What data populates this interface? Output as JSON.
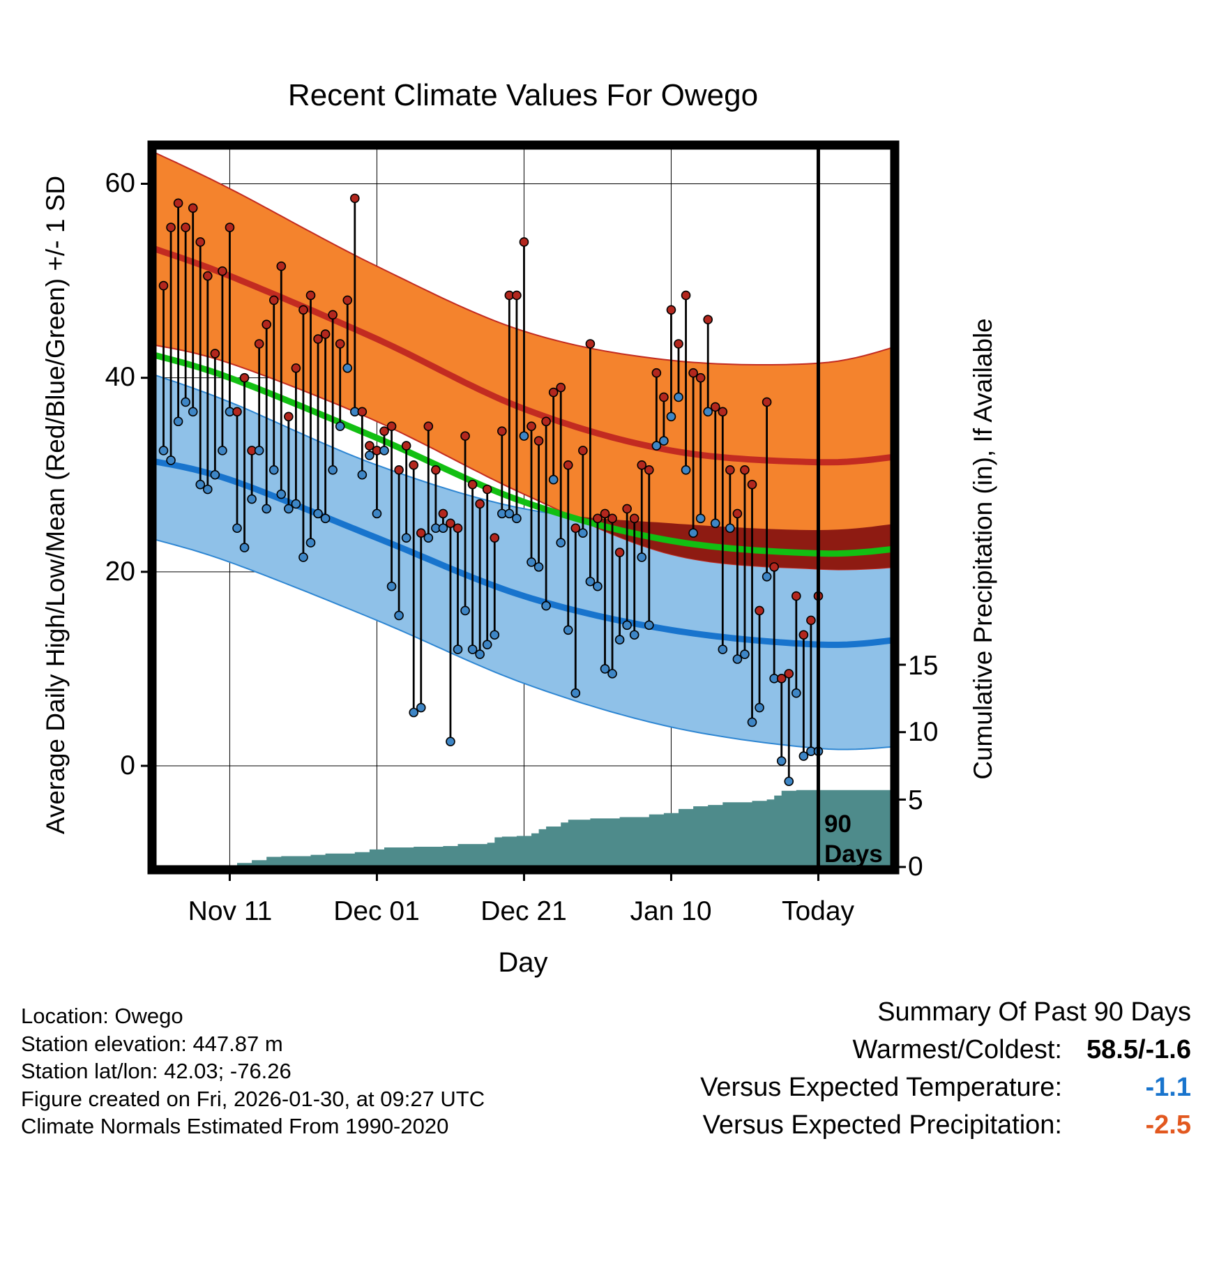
{
  "title": "Recent Climate Values For Owego",
  "axes": {
    "left_label": "Average Daily High/Low/Mean (Red/Blue/Green) +/- 1 SD",
    "right_label": "Cumulative Precipitation (in), If Available",
    "x_label": "Day",
    "left_ticks": [
      "60",
      "40",
      "20",
      "0"
    ],
    "right_ticks": [
      "15",
      "10",
      "5",
      "0"
    ],
    "x_ticks": [
      "Nov 11",
      "Dec 01",
      "Dec 21",
      "Jan 10",
      "Today"
    ]
  },
  "annotations": {
    "marker_line1": "90",
    "marker_line2": "Days"
  },
  "footer": {
    "lines": [
      "Location: Owego",
      "Station elevation: 447.87 m",
      "Station lat/lon: 42.03; -76.26",
      "Figure created on Fri, 2026-01-30, at 09:27 UTC",
      "Climate Normals Estimated From 1990-2020"
    ]
  },
  "summary": {
    "title": "Summary Of Past 90 Days",
    "rows": [
      {
        "label": "Warmest/Coldest:",
        "value": "58.5/-1.6",
        "color": "#000000"
      },
      {
        "label": "Versus Expected Temperature:",
        "value": "-1.1",
        "color": "#1874CD"
      },
      {
        "label": "Versus Expected Precipitation:",
        "value": "-2.5",
        "color": "#E2581F"
      }
    ]
  },
  "chart_data": {
    "type": "line",
    "title": "Recent Climate Values For Owego",
    "xlabel": "Day",
    "ylabel_left": "Average Daily High/Low/Mean (Red/Blue/Green) +/- 1 SD",
    "ylabel_right": "Cumulative Precipitation (in), If Available",
    "x_axis": {
      "tick_labels": [
        "Nov 11",
        "Dec 01",
        "Dec 21",
        "Jan 10",
        "Today"
      ],
      "tick_days": [
        9,
        29,
        49,
        69,
        89
      ],
      "day0_date": "Nov 02",
      "today_day": 89,
      "marker_label": "90 Days"
    },
    "y_left": {
      "ticks": [
        0,
        20,
        40,
        60
      ],
      "units": "deg F",
      "range": [
        -11,
        64
      ]
    },
    "y_right": {
      "ticks": [
        0,
        5,
        10,
        15
      ],
      "units": "inch"
    },
    "normals": {
      "days": [
        -2,
        9,
        29,
        49,
        69,
        89,
        100
      ],
      "high_plus_sd": [
        63.5,
        59.5,
        51.5,
        44.8,
        41.8,
        41.5,
        43.3
      ],
      "high_mean": [
        53.5,
        50.5,
        44.0,
        36.8,
        32.5,
        31.3,
        31.9
      ],
      "high_minus_sd": [
        43.5,
        41.5,
        35.5,
        28.0,
        21.8,
        20.3,
        20.5
      ],
      "mean": [
        42.5,
        40.0,
        33.8,
        27.2,
        23.2,
        21.9,
        22.4
      ],
      "low_plus_sd": [
        40.5,
        37.5,
        31.0,
        26.5,
        25.0,
        24.3,
        25.0
      ],
      "low_mean": [
        31.5,
        29.5,
        23.5,
        17.5,
        14.0,
        12.5,
        13.0
      ],
      "low_minus_sd": [
        23.5,
        21.0,
        15.0,
        8.5,
        4.0,
        1.8,
        2.0
      ]
    },
    "daily": {
      "start_day": 0,
      "highs": [
        49.5,
        55.5,
        58,
        55.5,
        57.5,
        54,
        50.5,
        42.5,
        51,
        55.5,
        36.5,
        40,
        32.5,
        43.5,
        45.5,
        48,
        51.5,
        36,
        41,
        47,
        48.5,
        44,
        44.5,
        46.5,
        43.5,
        48,
        58.5,
        36.5,
        33,
        32.5,
        34.5,
        35,
        30.5,
        33,
        31,
        24,
        35,
        30.5,
        26,
        25,
        24.5,
        34,
        29,
        27,
        28.5,
        23.5,
        34.5,
        48.5,
        48.5,
        54,
        35,
        33.5,
        35.5,
        38.5,
        39,
        31,
        24.5,
        32.5,
        43.5,
        25.5,
        26,
        25.5,
        22,
        26.5,
        25.5,
        31,
        30.5,
        40.5,
        38,
        47,
        43.5,
        48.5,
        40.5,
        40,
        46,
        37,
        36.5,
        30.5,
        26,
        30.5,
        29,
        16,
        37.5,
        20.5,
        9,
        9.5,
        17.5,
        13.5,
        15,
        17.5
      ],
      "lows": [
        32.5,
        31.5,
        35.5,
        37.5,
        36.5,
        29,
        28.5,
        30,
        32.5,
        36.5,
        24.5,
        22.5,
        27.5,
        32.5,
        26.5,
        30.5,
        28,
        26.5,
        27,
        21.5,
        23,
        26,
        25.5,
        30.5,
        35,
        41,
        36.5,
        30,
        32,
        26,
        32.5,
        18.5,
        15.5,
        23.5,
        5.5,
        6,
        23.5,
        24.5,
        24.5,
        2.5,
        12,
        16,
        12,
        11.5,
        12.5,
        13.5,
        26,
        26,
        25.5,
        34,
        21,
        20.5,
        16.5,
        29.5,
        23,
        14,
        7.5,
        24,
        19,
        18.5,
        10,
        9.5,
        13,
        14.5,
        13.5,
        21.5,
        14.5,
        33,
        33.5,
        36,
        38,
        30.5,
        24,
        25.5,
        36.5,
        25,
        12,
        24.5,
        11,
        11.5,
        4.5,
        6,
        19.5,
        9,
        0.5,
        -1.6,
        7.5,
        1,
        1.5,
        1.5
      ]
    },
    "precip_cumulative": {
      "days": [
        4,
        8,
        10,
        12,
        14,
        16,
        20,
        22,
        26,
        28,
        30,
        34,
        38,
        40,
        44,
        45,
        46,
        48,
        50,
        51,
        52,
        54,
        55,
        58,
        62,
        66,
        68,
        70,
        72,
        74,
        76,
        80,
        82,
        83,
        84,
        86,
        100
      ],
      "values": [
        0,
        0.1,
        0.3,
        0.5,
        0.75,
        0.8,
        0.9,
        1.0,
        1.1,
        1.3,
        1.45,
        1.5,
        1.55,
        1.7,
        1.8,
        2.2,
        2.25,
        2.3,
        2.5,
        2.8,
        3.0,
        3.3,
        3.5,
        3.6,
        3.7,
        3.9,
        4.0,
        4.3,
        4.5,
        4.6,
        4.8,
        4.9,
        5.0,
        5.3,
        5.65,
        5.7,
        5.7
      ]
    },
    "colors": {
      "high_band": "#F4832D",
      "high_band_edge": "#C22B21",
      "high_line": "#C22B21",
      "low_band": "#8FC1E8",
      "low_band_edge": "#2E86D2",
      "low_line": "#1874CD",
      "mean_line": "#12BF12",
      "overlap_band": "#8E1B12",
      "precip_fill": "#4E8B8B",
      "high_dot": "#B3271E",
      "low_dot": "#3E86C6",
      "stem": "#000000"
    }
  }
}
